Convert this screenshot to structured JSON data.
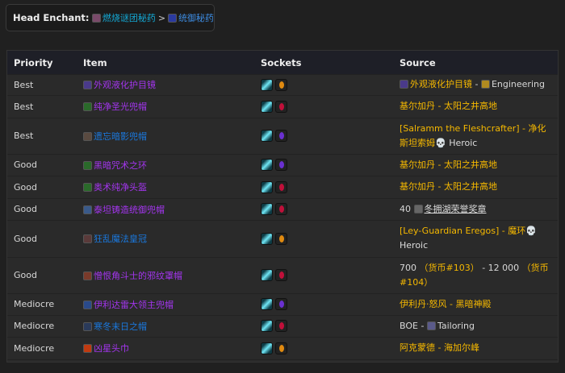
{
  "breadcrumb": {
    "label": "Head Enchant:",
    "enchant1": "燃烧谜团秘药",
    "separator": ">",
    "enchant2": "统御秘药"
  },
  "table": {
    "headers": [
      "Priority",
      "Item",
      "Sockets",
      "Source"
    ],
    "rows": [
      {
        "priority": "Best",
        "item": "外观液化护目镜",
        "quality": "epic",
        "icon_color": "#4a3a8a",
        "gem2": "#e08a10",
        "source": [
          {
            "t": "外观液化护目镜",
            "c": "gold",
            "icon": "#4a3a8a"
          },
          {
            "t": " - ",
            "c": "plain"
          },
          {
            "t": "Engineering",
            "c": "plain",
            "icon": "#b08a20"
          }
        ]
      },
      {
        "priority": "Best",
        "item": "纯净圣光兜帽",
        "quality": "epic",
        "icon_color": "#2a6a2a",
        "gem2": "#c0103a",
        "source": [
          {
            "t": "基尔加丹 - 太阳之井高地",
            "c": "gold"
          }
        ]
      },
      {
        "priority": "Best",
        "item": "遗忘暗影兜帽",
        "quality": "rare",
        "icon_color": "#5a4a40",
        "gem2": "#6a30d0",
        "source": [
          {
            "t": "[Salramm the Fleshcrafter] - 净化斯坦索姆",
            "c": "gold"
          },
          {
            "t": " Heroic",
            "c": "heroic",
            "icon": "skull"
          }
        ]
      },
      {
        "priority": "Good",
        "item": "黑暗咒术之环",
        "quality": "epic",
        "icon_color": "#2a6a2a",
        "gem2": "#6a30d0",
        "source": [
          {
            "t": "基尔加丹 - 太阳之井高地",
            "c": "gold"
          }
        ]
      },
      {
        "priority": "Good",
        "item": "奥术纯净头盔",
        "quality": "epic",
        "icon_color": "#2a6a2a",
        "gem2": "#c0103a",
        "source": [
          {
            "t": "基尔加丹 - 太阳之井高地",
            "c": "gold"
          }
        ]
      },
      {
        "priority": "Good",
        "item": "泰坦铸造统御兜帽",
        "quality": "epic",
        "icon_color": "#3a5a8a",
        "gem2": "#c0103a",
        "source": [
          {
            "t": "40 ",
            "c": "plain"
          },
          {
            "t": "冬拥湖荣誉奖章",
            "c": "ul",
            "icon": "#666"
          }
        ]
      },
      {
        "priority": "Good",
        "item": "狂乱魔法皇冠",
        "quality": "rare",
        "icon_color": "#5a3a3a",
        "gem2": "#e08a10",
        "source": [
          {
            "t": "[Ley-Guardian Eregos] - 魔环",
            "c": "gold"
          },
          {
            "t": " Heroic",
            "c": "heroic",
            "icon": "skull"
          }
        ]
      },
      {
        "priority": "Good",
        "item": "憎恨角斗士的邪纹罩帽",
        "quality": "epic",
        "icon_color": "#7a3a2a",
        "gem2": "#c0103a",
        "source": [
          {
            "t": "700 ",
            "c": "plain"
          },
          {
            "t": "（货币#103）",
            "c": "gold"
          },
          {
            "t": " - 12 000 ",
            "c": "plain"
          },
          {
            "t": "（货币#104）",
            "c": "gold"
          }
        ]
      },
      {
        "priority": "Mediocre",
        "item": "伊利达雷大领主兜帽",
        "quality": "epic",
        "icon_color": "#2a4a8a",
        "gem2": "#6a30d0",
        "source": [
          {
            "t": "伊利丹·怒风 - 黑暗神殿",
            "c": "gold"
          }
        ]
      },
      {
        "priority": "Mediocre",
        "item": "寒冬末日之帽",
        "quality": "rare",
        "icon_color": "#2a3a5a",
        "gem2": "#c0103a",
        "source": [
          {
            "t": "BOE - ",
            "c": "plain"
          },
          {
            "t": "Tailoring",
            "c": "plain",
            "icon": "#5a5a8a"
          }
        ]
      },
      {
        "priority": "Mediocre",
        "item": "凶星头巾",
        "quality": "epic",
        "icon_color": "#c03a10",
        "gem2": "#e08a10",
        "source": [
          {
            "t": "阿克蒙德 - 海加尔峰",
            "c": "gold"
          }
        ]
      }
    ]
  }
}
